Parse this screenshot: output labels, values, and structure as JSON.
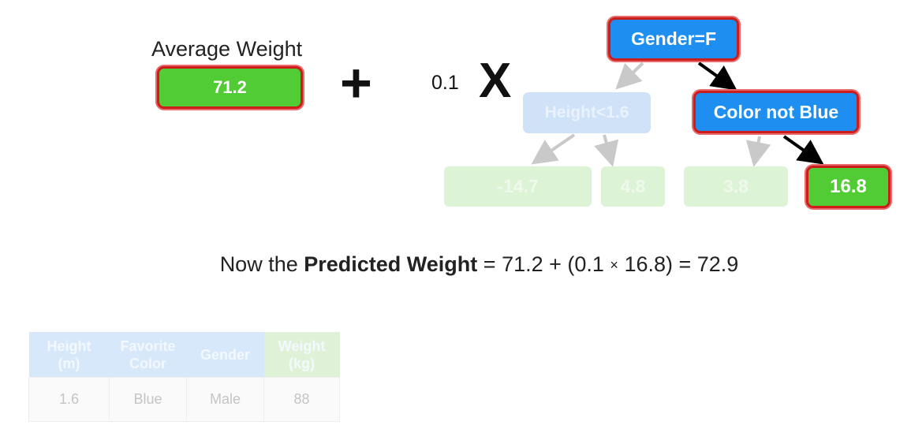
{
  "average": {
    "label": "Average Weight",
    "value": "71.2"
  },
  "plus": "+",
  "learning_rate": "0.1",
  "times": "X",
  "tree": {
    "root": "Gender=F",
    "left_node": "Height<1.6",
    "right_node": "Color not Blue",
    "leaves": [
      "-14.7",
      "4.8",
      "3.8",
      "16.8"
    ]
  },
  "formula": {
    "prefix": "Now the ",
    "bold": "Predicted Weight",
    "eq1": " = 71.2 + (0.1 ",
    "times": "×",
    "eq2": " 16.8) = 72.9"
  },
  "table": {
    "headers": [
      "Height\n(m)",
      "Favorite\nColor",
      "Gender",
      "Weight\n(kg)"
    ],
    "row": [
      "1.6",
      "Blue",
      "Male",
      "88"
    ]
  },
  "colors": {
    "green": "#52cc34",
    "blue": "#1e8ff0",
    "highlight": "#cc1d1d"
  }
}
